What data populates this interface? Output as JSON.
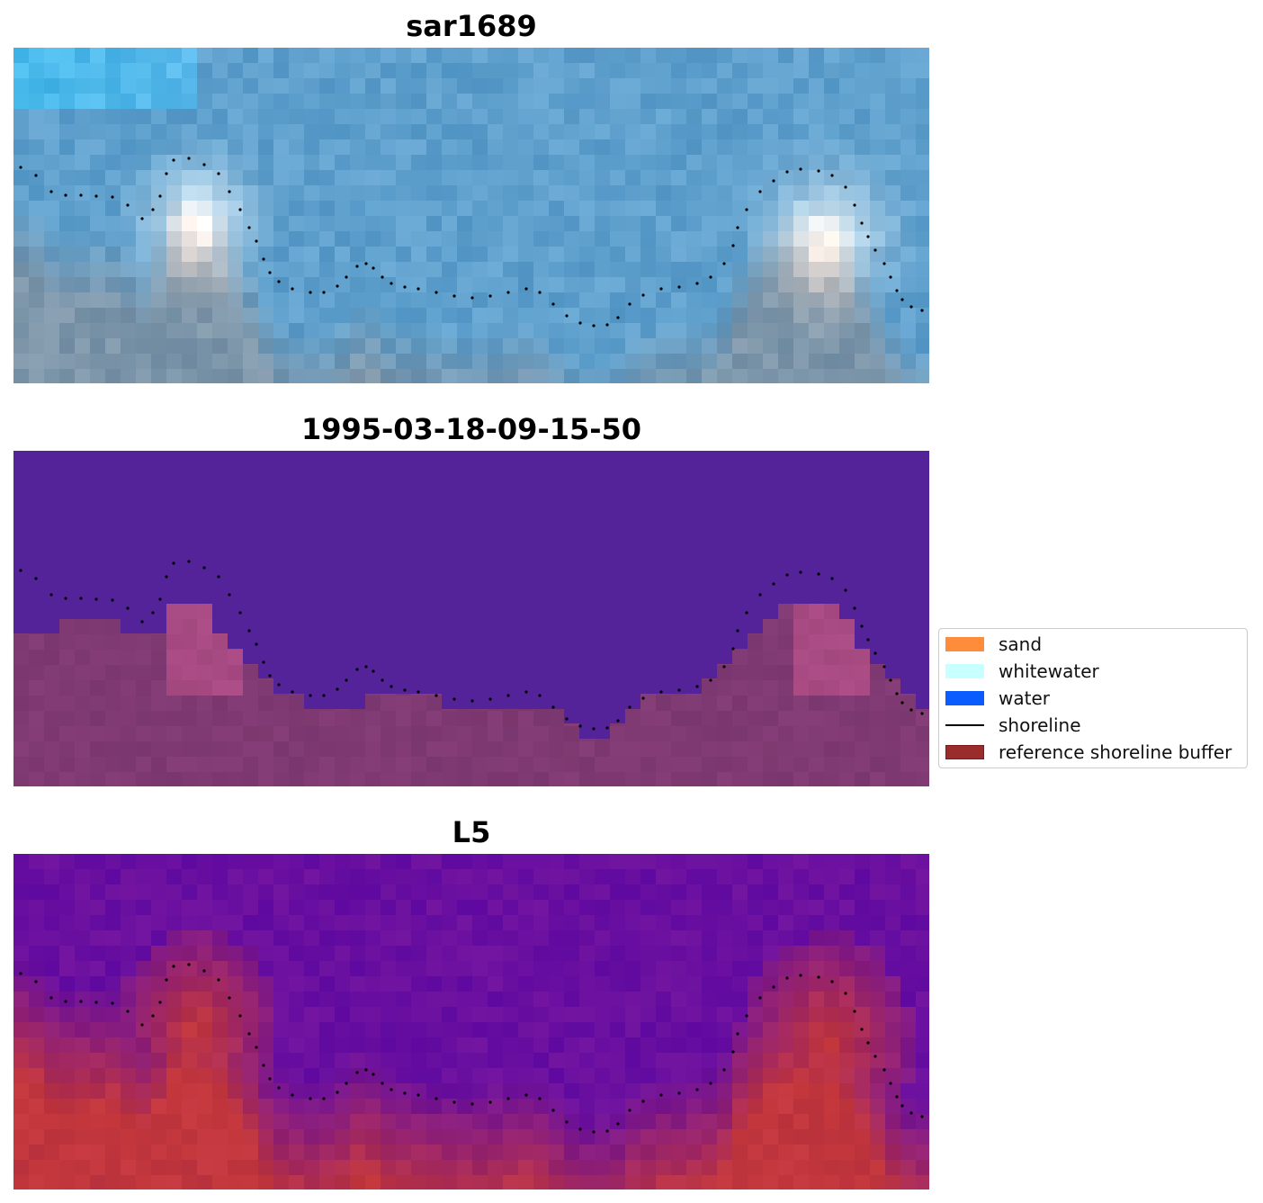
{
  "panels": [
    {
      "title": "sar1689",
      "kind": "rgb"
    },
    {
      "title": "1995-03-18-09-15-50",
      "kind": "classified"
    },
    {
      "title": "L5",
      "kind": "index"
    }
  ],
  "legend": {
    "items": [
      {
        "label": "sand",
        "color": "#ff8c3a",
        "type": "patch"
      },
      {
        "label": "whitewater",
        "color": "#c8ffff",
        "type": "patch"
      },
      {
        "label": "water",
        "color": "#0a5cff",
        "type": "patch"
      },
      {
        "label": "shoreline",
        "color": "#000000",
        "type": "line"
      },
      {
        "label": "reference shoreline buffer",
        "color": "#9b2c2c",
        "type": "patch"
      }
    ]
  }
}
